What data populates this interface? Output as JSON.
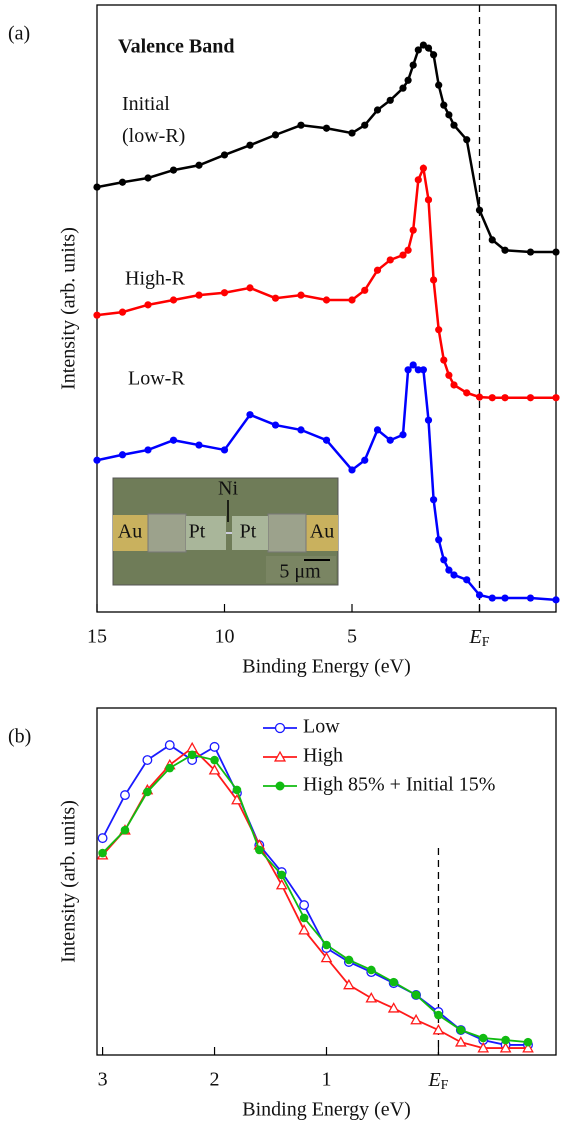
{
  "chart_data": [
    {
      "type": "line",
      "panel_label": "(a)",
      "xlabel": "Binding Energy (eV)",
      "ylabel": "Intensity (arb. units)",
      "annotations": [
        "Valence Band"
      ],
      "inset_labels": [
        "Ni",
        "Au",
        "Pt",
        "Pt",
        "Au",
        "5 μm"
      ],
      "xlim": [
        15,
        -3
      ],
      "ylim": [
        0,
        100
      ],
      "xticks": [
        15,
        10,
        5,
        {
          "value": 0,
          "label": "EF"
        }
      ],
      "x": [
        15,
        14,
        13,
        12,
        11,
        10,
        9,
        8,
        7,
        6,
        5,
        4.5,
        4,
        3.5,
        3,
        2.8,
        2.6,
        2.4,
        2.2,
        2,
        1.8,
        1.6,
        1.4,
        1.2,
        1,
        0.5,
        0,
        -0.5,
        -1,
        -2,
        -3
      ],
      "series": [
        {
          "name": "Initial (low-R)",
          "color": "#000000",
          "marker": "circle",
          "values": [
            70.0,
            70.8,
            71.5,
            72.8,
            73.6,
            75.3,
            76.9,
            78.6,
            80.2,
            79.7,
            78.9,
            80.2,
            82.7,
            84.3,
            86.3,
            87.6,
            90.1,
            92.6,
            93.4,
            92.9,
            91.8,
            86.8,
            83.5,
            81.9,
            80.2,
            77.8,
            66.2,
            61.3,
            59.6,
            59.3,
            59.3
          ]
        },
        {
          "name": "High-R",
          "color": "#ff0000",
          "marker": "circle",
          "values": [
            48.9,
            49.4,
            50.6,
            51.4,
            52.2,
            52.6,
            53.4,
            51.7,
            52.2,
            51.4,
            51.4,
            53.0,
            56.3,
            58.0,
            58.8,
            59.6,
            62.9,
            71.2,
            73.1,
            67.9,
            54.7,
            46.5,
            41.5,
            39.0,
            37.4,
            36.1,
            35.4,
            35.3,
            35.3,
            35.3,
            35.3
          ]
        },
        {
          "name": "Low-R",
          "color": "#0000ff",
          "marker": "circle",
          "values": [
            25.0,
            25.9,
            26.7,
            28.3,
            27.5,
            26.7,
            32.5,
            30.8,
            30.0,
            28.3,
            23.4,
            25.0,
            30.0,
            28.3,
            29.2,
            39.9,
            40.7,
            39.9,
            39.9,
            31.6,
            18.5,
            11.9,
            8.6,
            6.9,
            6.1,
            5.3,
            2.8,
            2.3,
            2.3,
            2.3,
            2.0
          ]
        }
      ]
    },
    {
      "type": "line",
      "panel_label": "(b)",
      "xlabel": "Binding Energy (eV)",
      "ylabel": "Intensity (arb. units)",
      "xlim": [
        3.05,
        -1.05
      ],
      "ylim": [
        0,
        100
      ],
      "xticks": [
        3,
        2,
        1,
        {
          "value": 0,
          "label": "EF"
        }
      ],
      "legend": "upper right",
      "x": [
        3,
        2.8,
        2.6,
        2.4,
        2.2,
        2,
        1.8,
        1.6,
        1.4,
        1.2,
        1,
        0.8,
        0.6,
        0.4,
        0.2,
        0,
        -0.2,
        -0.4,
        -0.6,
        -0.8
      ],
      "series": [
        {
          "name": "Low",
          "color": "#1a1aff",
          "marker": "circle-open",
          "values": [
            62.5,
            74.9,
            85.0,
            89.3,
            85.0,
            88.8,
            75.5,
            60.5,
            52.7,
            43.2,
            30.8,
            26.8,
            23.9,
            20.7,
            17.3,
            12.4,
            7.2,
            4.3,
            2.9,
            2.9
          ]
        },
        {
          "name": "High",
          "color": "#ff1a1a",
          "marker": "triangle-open",
          "values": [
            57.6,
            64.8,
            76.4,
            83.6,
            88.5,
            82.1,
            73.5,
            60.5,
            49.0,
            36.0,
            28.0,
            20.2,
            16.4,
            13.5,
            10.1,
            7.2,
            3.7,
            2.0,
            2.0,
            2.0
          ]
        },
        {
          "name": "High 85% + Initial 15%",
          "color": "#11bb11",
          "marker": "circle",
          "values": [
            58.2,
            64.8,
            75.8,
            82.7,
            86.5,
            85.0,
            76.4,
            59.1,
            51.9,
            39.5,
            31.7,
            27.4,
            24.5,
            21.0,
            17.3,
            11.5,
            7.2,
            4.9,
            4.3,
            3.7
          ]
        }
      ]
    }
  ]
}
